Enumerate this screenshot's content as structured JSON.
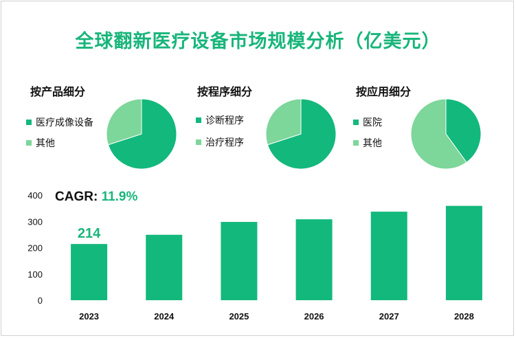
{
  "title": "全球翻新医疗设备市场规模分析（亿美元）",
  "colors": {
    "primary": "#13b87c",
    "secondary": "#7dd69a"
  },
  "segments": [
    {
      "title": "按产品细分",
      "legend": [
        "医疗成像设备",
        "其他"
      ],
      "shares": [
        0.7,
        0.3
      ]
    },
    {
      "title": "按程序细分",
      "legend": [
        "诊断程序",
        "治疗程序"
      ],
      "shares": [
        0.7,
        0.3
      ]
    },
    {
      "title": "按应用细分",
      "legend": [
        "医院",
        "其他"
      ],
      "shares": [
        0.4,
        0.6
      ]
    }
  ],
  "cagr": {
    "label": "CAGR: ",
    "value": "11.9%"
  },
  "chart_data": {
    "type": "bar",
    "categories": [
      "2023",
      "2024",
      "2025",
      "2026",
      "2027",
      "2028"
    ],
    "values": [
      214,
      249,
      298,
      308,
      337,
      359
    ],
    "data_labels": {
      "2023": "214"
    },
    "ylim": [
      0,
      400
    ],
    "yticks": [
      "0",
      "100",
      "200",
      "300",
      "400"
    ],
    "title": "",
    "xlabel": "",
    "ylabel": ""
  }
}
